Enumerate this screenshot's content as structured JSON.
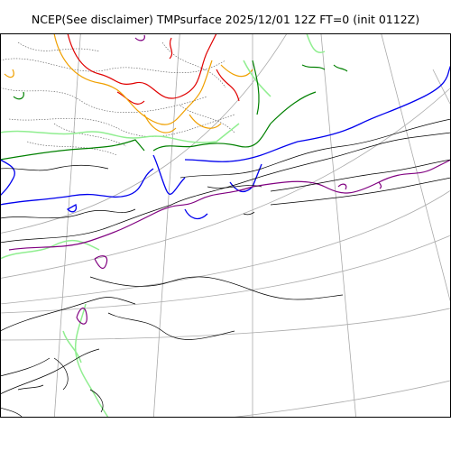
{
  "title": "NCEP(See disclaimer) TMPsurface 2025/12/01 12Z FT=0 (init 0112Z)",
  "colors": {
    "coast": "#000000",
    "graticule": "#aaaaaa",
    "contour_dotted": "#555555",
    "red": "#e00000",
    "orange": "#f0a000",
    "green": "#008000",
    "blue": "#0000ee",
    "purple": "#800080",
    "light_green": "#90ee90"
  }
}
